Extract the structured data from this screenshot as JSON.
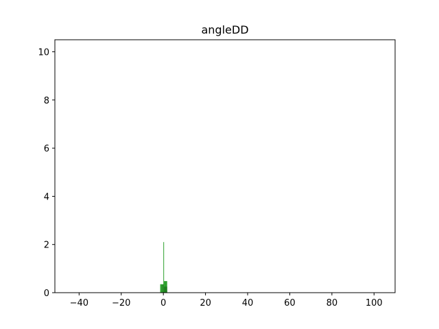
{
  "chart_data": {
    "type": "bar",
    "title": "angleDD",
    "xlabel": "",
    "ylabel": "",
    "xlim": [
      -51.5,
      110
    ],
    "ylim": [
      0,
      10.5
    ],
    "xticks": [
      -40,
      -20,
      0,
      20,
      40,
      60,
      80,
      100
    ],
    "xtick_labels": [
      "−40",
      "−20",
      "0",
      "20",
      "40",
      "60",
      "80",
      "100"
    ],
    "yticks": [
      0,
      2,
      4,
      6,
      8,
      10
    ],
    "ytick_labels": [
      "0",
      "2",
      "4",
      "6",
      "8",
      "10"
    ],
    "grid": false,
    "bars": [
      {
        "x0": -1.5,
        "x1": -0.5,
        "value": 0.35,
        "color": "#2ca02c"
      },
      {
        "x0": -0.5,
        "x1": 0.3,
        "value": 0.35,
        "color": "#1f7f1f"
      },
      {
        "x0": 0.0,
        "x1": 0.25,
        "value": 2.1,
        "color": "#2ca02c"
      },
      {
        "x0": 0.3,
        "x1": 1.8,
        "value": 0.48,
        "color": "#2ca02c"
      },
      {
        "x0": 0.3,
        "x1": 1.8,
        "value": 0.25,
        "color": "#1f7f1f"
      }
    ]
  }
}
